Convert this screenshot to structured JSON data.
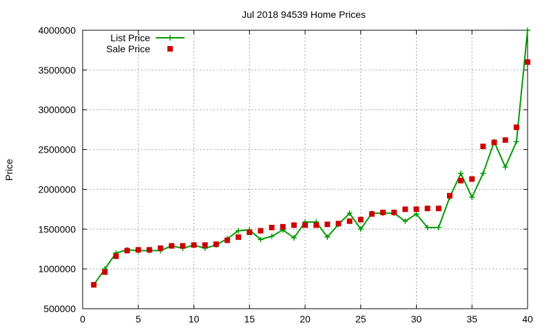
{
  "chart_data": {
    "type": "line",
    "title": "Jul 2018 94539 Home Prices",
    "ylabel": "Price",
    "xlabel": "",
    "xlim": [
      0,
      40
    ],
    "ylim": [
      500000,
      4000000
    ],
    "xticks": [
      0,
      5,
      10,
      15,
      20,
      25,
      30,
      35,
      40
    ],
    "yticks": [
      500000,
      1000000,
      1500000,
      2000000,
      2500000,
      3000000,
      3500000,
      4000000
    ],
    "grid": true,
    "legend_position": "top-left",
    "x": [
      1,
      2,
      3,
      4,
      5,
      6,
      7,
      8,
      9,
      10,
      11,
      12,
      13,
      14,
      15,
      16,
      17,
      18,
      19,
      20,
      21,
      22,
      23,
      24,
      25,
      26,
      27,
      28,
      29,
      30,
      31,
      32,
      33,
      34,
      35,
      36,
      37,
      38,
      39,
      40
    ],
    "series": [
      {
        "name": "List Price",
        "style": "line-cross",
        "color": "#009900",
        "values": [
          800000,
          1000000,
          1200000,
          1240000,
          1230000,
          1230000,
          1230000,
          1290000,
          1260000,
          1300000,
          1260000,
          1300000,
          1380000,
          1480000,
          1490000,
          1370000,
          1410000,
          1490000,
          1390000,
          1590000,
          1590000,
          1400000,
          1560000,
          1700000,
          1500000,
          1700000,
          1700000,
          1700000,
          1600000,
          1690000,
          1520000,
          1520000,
          1900000,
          2200000,
          1900000,
          2200000,
          2600000,
          2280000,
          2600000,
          4000000
        ]
      },
      {
        "name": "Sale Price",
        "style": "square",
        "color": "#cc0000",
        "values": [
          800000,
          960000,
          1160000,
          1230000,
          1240000,
          1240000,
          1260000,
          1290000,
          1290000,
          1300000,
          1300000,
          1310000,
          1360000,
          1400000,
          1460000,
          1480000,
          1520000,
          1530000,
          1550000,
          1550000,
          1550000,
          1560000,
          1570000,
          1600000,
          1620000,
          1690000,
          1710000,
          1710000,
          1750000,
          1750000,
          1760000,
          1760000,
          1920000,
          2110000,
          2130000,
          2540000,
          2590000,
          2620000,
          2780000,
          3600000
        ]
      }
    ]
  }
}
